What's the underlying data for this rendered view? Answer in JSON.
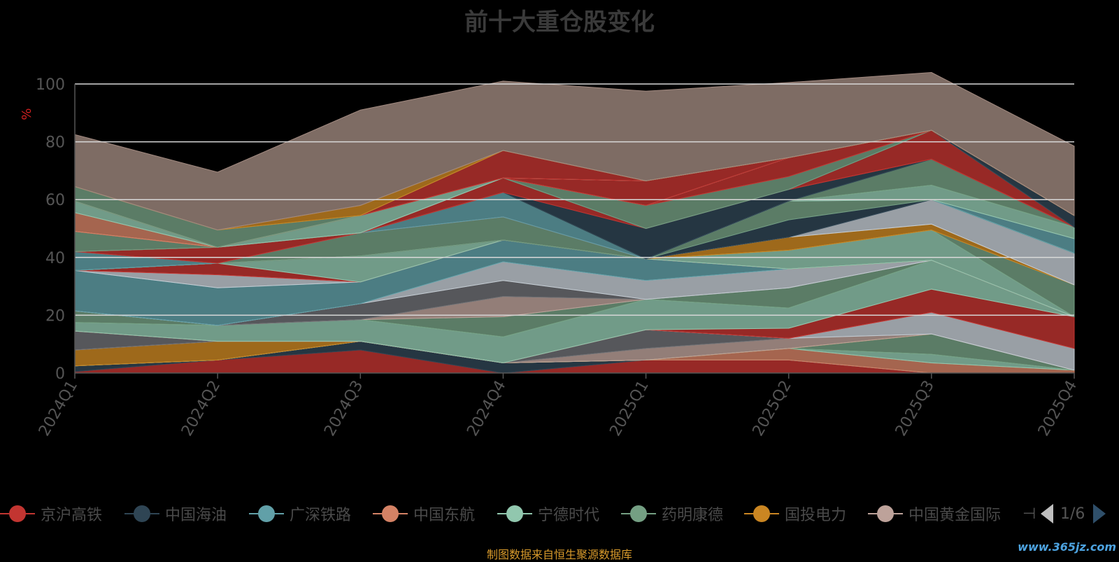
{
  "title": "前十大重仓股变化",
  "source_note": "制图数据来自恒生聚源数据库",
  "watermark": "www.365jz.com",
  "legend_page": "1/6",
  "legend_end_icon": "⊣",
  "colors": {
    "background": "#000000",
    "title": "#3a3a3a",
    "axis": "#555555",
    "gridline": "#d8d8d8",
    "source_text": "#d89a2b",
    "unit_label": "#d02020"
  },
  "chart_data": {
    "type": "area",
    "stacked": true,
    "title": "前十大重仓股变化",
    "ylabel": "%",
    "ylim": [
      0,
      100
    ],
    "yticks": [
      0,
      20,
      40,
      60,
      80,
      100
    ],
    "grid": true,
    "legend_position": "bottom",
    "categories": [
      "2024Q1",
      "2024Q2",
      "2024Q3",
      "2024Q4",
      "2025Q1",
      "2025Q2",
      "2025Q3",
      "2025Q4"
    ],
    "series": [
      {
        "name": "京沪高铁",
        "color": "#c23531",
        "values": [
          0.5,
          4.5,
          8,
          0,
          4.5,
          4.5,
          0,
          0
        ]
      },
      {
        "name": "中国海油",
        "color": "#2f4554",
        "values": [
          2,
          0,
          3,
          3.5,
          0,
          0,
          0,
          0
        ]
      },
      {
        "name": "广深铁路",
        "color": "#61a0a8",
        "values": [
          0,
          0,
          0,
          0,
          0,
          0,
          0,
          0
        ]
      },
      {
        "name": "中国东航",
        "color": "#d48265",
        "values": [
          0,
          0,
          0,
          0,
          0,
          4,
          3.5,
          1
        ]
      },
      {
        "name": "宁德时代",
        "color": "#91c7ae",
        "values": [
          0,
          0,
          0,
          0,
          0,
          0,
          3,
          0
        ]
      },
      {
        "name": "药明康德",
        "color": "#749f83",
        "values": [
          0,
          0,
          0,
          0,
          0,
          0,
          7,
          0
        ]
      },
      {
        "name": "国投电力",
        "color": "#ca8622",
        "values": [
          5.5,
          6.5,
          0,
          0,
          0,
          0,
          0,
          0
        ]
      },
      {
        "name": "中国黄金国际",
        "color": "#bda29a",
        "values": [
          0,
          0,
          0,
          0,
          4,
          3.5,
          0,
          0
        ]
      },
      {
        "values": [
          6.5,
          0,
          0,
          0,
          6.5,
          0,
          0,
          0
        ],
        "color": "#6e7074"
      },
      {
        "values": [
          0,
          0,
          0,
          0,
          0,
          0,
          7.5,
          7.5
        ],
        "color": "#c4ccd3"
      },
      {
        "values": [
          0,
          0,
          0,
          0,
          0,
          3.5,
          8,
          11
        ],
        "color": "#c23531"
      },
      {
        "values": [
          3,
          5.5,
          7.5,
          9,
          10.5,
          7,
          10,
          0
        ],
        "color": "#91c7ae"
      },
      {
        "values": [
          4,
          0,
          0,
          7,
          0,
          7,
          0,
          0
        ],
        "color": "#749f83"
      },
      {
        "values": [
          0,
          0,
          0,
          7,
          0,
          0,
          0,
          0
        ],
        "color": "#bda29a"
      },
      {
        "values": [
          0,
          0,
          5.5,
          5.5,
          0,
          0,
          0,
          0
        ],
        "color": "#6e7074"
      },
      {
        "values": [
          0,
          0,
          0,
          6.5,
          6.5,
          6.5,
          0,
          0
        ],
        "color": "#c4ccd3"
      },
      {
        "values": [
          14,
          13,
          7.5,
          7.5,
          7.5,
          0,
          0,
          0
        ],
        "color": "#61a0a8"
      },
      {
        "values": [
          0,
          4.5,
          0,
          0,
          0,
          0,
          0,
          0
        ],
        "color": "#c4ccd3"
      },
      {
        "values": [
          0,
          4,
          0,
          0,
          0,
          0,
          0,
          0
        ],
        "color": "#c23531"
      },
      {
        "values": [
          0,
          0,
          9,
          0,
          0,
          6.5,
          10.5,
          0
        ],
        "color": "#91c7ae"
      },
      {
        "values": [
          0,
          0,
          0,
          0,
          0,
          0,
          0,
          11
        ],
        "color": "#749f83"
      },
      {
        "values": [
          0,
          0,
          0,
          0,
          0,
          4.5,
          2,
          0
        ],
        "color": "#ca8622"
      },
      {
        "values": [
          0,
          0,
          0,
          0,
          0,
          0,
          8.5,
          11
        ],
        "color": "#c4ccd3"
      },
      {
        "values": [
          0,
          0,
          0,
          0,
          0,
          6,
          0,
          0
        ],
        "color": "#2f4554"
      },
      {
        "values": [
          0,
          0,
          8,
          8,
          0,
          6.5,
          0,
          0
        ],
        "color": "#749f83"
      },
      {
        "values": [
          6.5,
          0,
          0,
          0,
          0,
          0,
          0,
          5
        ],
        "color": "#61a0a8"
      },
      {
        "values": [
          0,
          5.5,
          0,
          0,
          0,
          0,
          0,
          0
        ],
        "color": "#c23531"
      },
      {
        "values": [
          0,
          0,
          0,
          8.5,
          0,
          0,
          0,
          0
        ],
        "color": "#61a0a8"
      },
      {
        "values": [
          0,
          0,
          0,
          0,
          0,
          0,
          5,
          4
        ],
        "color": "#91c7ae"
      },
      {
        "values": [
          0,
          0,
          0,
          0,
          0,
          0,
          9,
          0
        ],
        "color": "#749f83"
      },
      {
        "values": [
          0,
          0,
          0,
          0,
          10.5,
          4,
          0,
          0
        ],
        "color": "#2f4554"
      },
      {
        "values": [
          0,
          0,
          0,
          5,
          0,
          0,
          0,
          0
        ],
        "color": "#c23531"
      },
      {
        "values": [
          0,
          0,
          0,
          0,
          0,
          0,
          10,
          0
        ],
        "color": "#c23531"
      },
      {
        "values": [
          7,
          0,
          0,
          0,
          0,
          0,
          0,
          0
        ],
        "color": "#749f83"
      },
      {
        "values": [
          0,
          0,
          0,
          0,
          0,
          0,
          0,
          4
        ],
        "color": "#2f4554"
      },
      {
        "values": [
          0,
          0,
          0,
          0,
          8,
          4.5,
          0,
          0
        ],
        "color": "#749f83"
      },
      {
        "values": [
          0,
          0,
          0,
          0,
          0,
          6.5,
          0,
          0
        ],
        "color": "#c23531"
      },
      {
        "values": [
          0,
          0,
          6,
          0,
          0,
          0,
          0,
          0
        ],
        "color": "#91c7ae"
      },
      {
        "values": [
          0,
          0,
          0,
          0,
          8.5,
          0,
          0,
          0
        ],
        "color": "#c23531"
      },
      {
        "values": [
          6.5,
          0,
          0,
          0,
          0,
          0,
          0,
          0
        ],
        "color": "#d48265"
      },
      {
        "values": [
          4,
          0,
          0,
          0,
          0,
          0,
          0,
          0
        ],
        "color": "#91c7ae"
      },
      {
        "values": [
          0,
          0,
          0,
          9.5,
          0,
          0,
          0,
          0
        ],
        "color": "#c23531"
      },
      {
        "values": [
          5,
          6,
          0,
          0,
          0,
          0,
          0,
          0
        ],
        "color": "#749f83"
      },
      {
        "values": [
          0,
          0,
          3.5,
          0,
          0,
          0,
          0,
          0
        ],
        "color": "#ca8622"
      },
      {
        "values": [
          18,
          20,
          33,
          24,
          31,
          26,
          20,
          24
        ],
        "color": "#a28a80"
      }
    ]
  }
}
